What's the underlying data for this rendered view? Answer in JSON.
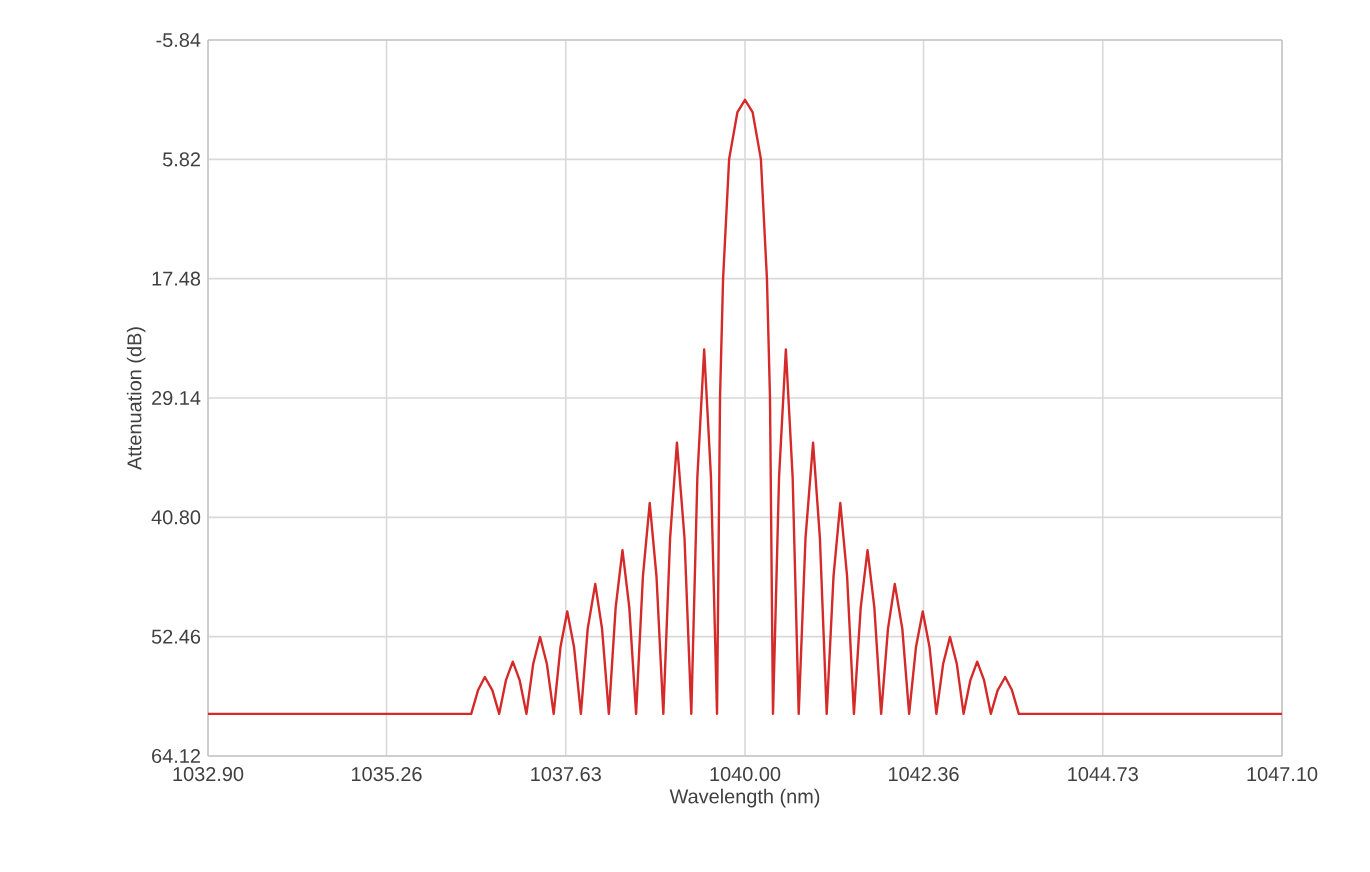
{
  "chart_data": {
    "type": "line",
    "xlabel": "Wavelength (nm)",
    "ylabel": "Attenuation (dB)",
    "color": "#d42a2a",
    "grid": true,
    "xlim": [
      1032.9,
      1047.1
    ],
    "ylim": [
      64.12,
      -5.84
    ],
    "xticks": [
      {
        "value": 1032.9,
        "label": "1032.90"
      },
      1035.26,
      1037.63,
      {
        "value": 1040.0,
        "label": "1040.00"
      },
      1042.36,
      1044.73,
      {
        "value": 1047.1,
        "label": "1047.10"
      }
    ],
    "yticks": [
      -5.84,
      5.82,
      17.48,
      29.14,
      {
        "value": 40.8,
        "label": "40.80"
      },
      52.46,
      64.12
    ],
    "x": [
      1032.9,
      1036.38,
      1036.47,
      1036.56,
      1036.66,
      1036.75,
      1036.84,
      1036.93,
      1037.02,
      1037.11,
      1037.2,
      1037.29,
      1037.38,
      1037.47,
      1037.56,
      1037.65,
      1037.74,
      1037.83,
      1037.92,
      1038.02,
      1038.11,
      1038.2,
      1038.29,
      1038.38,
      1038.47,
      1038.56,
      1038.65,
      1038.74,
      1038.83,
      1038.92,
      1039.01,
      1039.1,
      1039.2,
      1039.29,
      1039.37,
      1039.46,
      1039.55,
      1039.63,
      1039.67,
      1039.71,
      1039.79,
      1039.9,
      1040.0,
      1040.1,
      1040.21,
      1040.29,
      1040.33,
      1040.37,
      1040.45,
      1040.54,
      1040.63,
      1040.71,
      1040.8,
      1040.9,
      1040.99,
      1041.08,
      1041.17,
      1041.26,
      1041.35,
      1041.44,
      1041.53,
      1041.62,
      1041.71,
      1041.8,
      1041.89,
      1041.98,
      1042.08,
      1042.17,
      1042.26,
      1042.35,
      1042.44,
      1042.53,
      1042.62,
      1042.71,
      1042.8,
      1042.89,
      1042.98,
      1043.07,
      1043.16,
      1043.25,
      1043.34,
      1043.44,
      1043.53,
      1043.62,
      1047.1
    ],
    "values": [
      60,
      60,
      57.7,
      56.4,
      57.7,
      60,
      56.7,
      54.9,
      56.7,
      60,
      55.1,
      52.5,
      55.1,
      60,
      53.5,
      50.0,
      53.5,
      60,
      51.7,
      47.3,
      51.7,
      60,
      49.6,
      44.0,
      49.6,
      60,
      46.6,
      39.4,
      46.6,
      60,
      42.8,
      33.5,
      42.8,
      60,
      36.9,
      24.4,
      36.9,
      60,
      29,
      17.5,
      5.8,
      1.2,
      0,
      1.2,
      5.8,
      17.5,
      29,
      60,
      36.9,
      24.4,
      36.9,
      60,
      42.8,
      33.5,
      42.8,
      60,
      46.6,
      39.4,
      46.6,
      60,
      49.6,
      44.0,
      49.6,
      60,
      51.7,
      47.3,
      51.7,
      60,
      53.5,
      50.0,
      53.5,
      60,
      55.1,
      52.5,
      55.1,
      60,
      56.7,
      54.9,
      56.7,
      60,
      57.7,
      56.4,
      57.7,
      60,
      60
    ]
  }
}
